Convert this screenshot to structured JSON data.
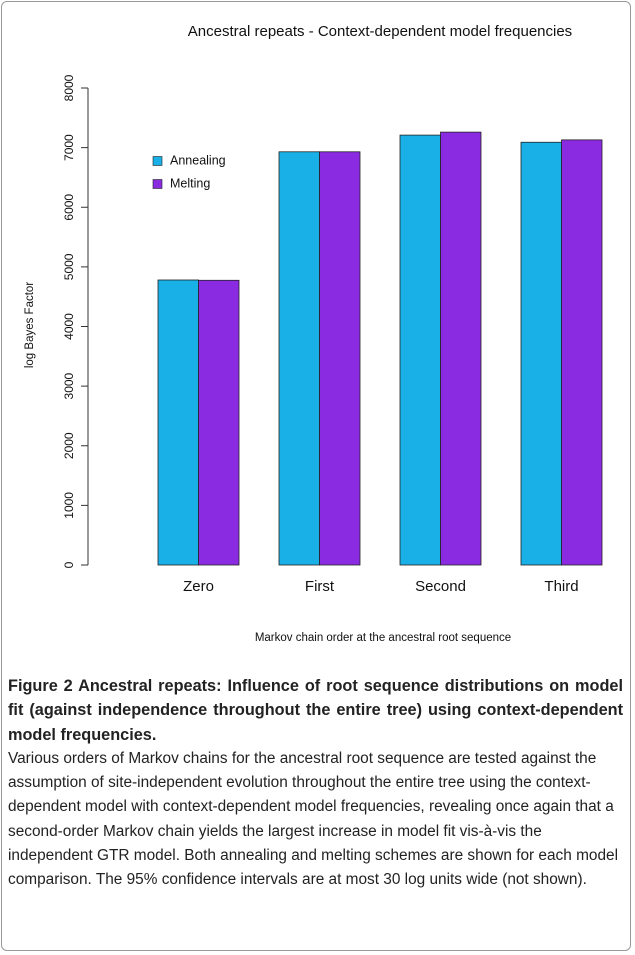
{
  "chart_data": {
    "type": "bar",
    "title": "Ancestral repeats - Context-dependent model frequencies",
    "xlabel": "Markov chain order at the ancestral root sequence",
    "ylabel": "log Bayes Factor",
    "categories": [
      "Zero",
      "First",
      "Second",
      "Third"
    ],
    "series": [
      {
        "name": "Annealing",
        "color": "#19b0e8",
        "values": [
          4780,
          6930,
          7210,
          7090
        ]
      },
      {
        "name": "Melting",
        "color": "#8a2be2",
        "values": [
          4775,
          6930,
          7260,
          7130
        ]
      }
    ],
    "ylim": [
      0,
      8000
    ],
    "yticks": [
      0,
      1000,
      2000,
      3000,
      4000,
      5000,
      6000,
      7000,
      8000
    ],
    "legend": "upper left"
  },
  "caption": {
    "label": "Figure 2",
    "title": "Ancestral repeats: Influence of root sequence distributions on model fit (against independence throughout the entire tree) using context-dependent model frequencies",
    "body": "Various orders of Markov chains for the ancestral root sequence are tested against the assumption of site-independent evolution throughout the entire tree using the context-dependent model with context-dependent model frequencies, revealing once again that a second-order Markov chain yields the largest increase in model fit vis-à-vis the independent GTR model. Both annealing and melting schemes are shown for each model comparison. The 95% confidence intervals are at most 30 log units wide (not shown)."
  }
}
